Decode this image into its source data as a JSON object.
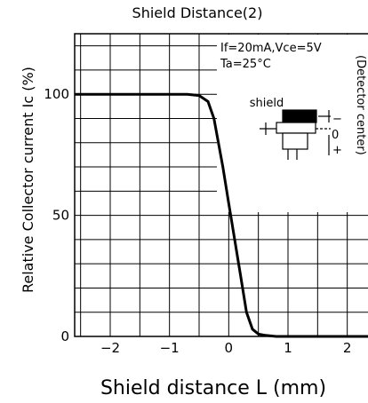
{
  "chart_data": {
    "type": "line",
    "title": "Shield Distance(2)",
    "xlabel": "Shield distance L (mm)",
    "ylabel": "Relative Collector current Ic (%)",
    "xlim": [
      -2.6,
      2.5
    ],
    "ylim": [
      0,
      125
    ],
    "grid": true,
    "x_ticks": [
      "−2",
      "−1",
      "0",
      "1",
      "2"
    ],
    "y_ticks": [
      "0",
      "50",
      "100"
    ],
    "series": [
      {
        "x": [
          -2.6,
          -2.0,
          -1.0,
          -0.7,
          -0.5,
          -0.35,
          -0.25,
          -0.1,
          0.0,
          0.1,
          0.2,
          0.3,
          0.4,
          0.5,
          0.6,
          0.8,
          1.0,
          1.5,
          2.0,
          2.5
        ],
        "y": [
          100,
          100,
          100,
          100,
          99.5,
          97,
          90,
          70,
          55,
          40,
          25,
          10,
          3,
          1,
          0.5,
          0,
          0,
          0,
          0,
          0
        ]
      }
    ],
    "annotations": {
      "condition1": "If=20mA,Vce=5V",
      "condition2": "Ta=25°C",
      "shield_label": "shield",
      "dir_minus": "−",
      "dir_zero": "0",
      "dir_plus": "+",
      "side_label": "(Detector center)"
    }
  }
}
